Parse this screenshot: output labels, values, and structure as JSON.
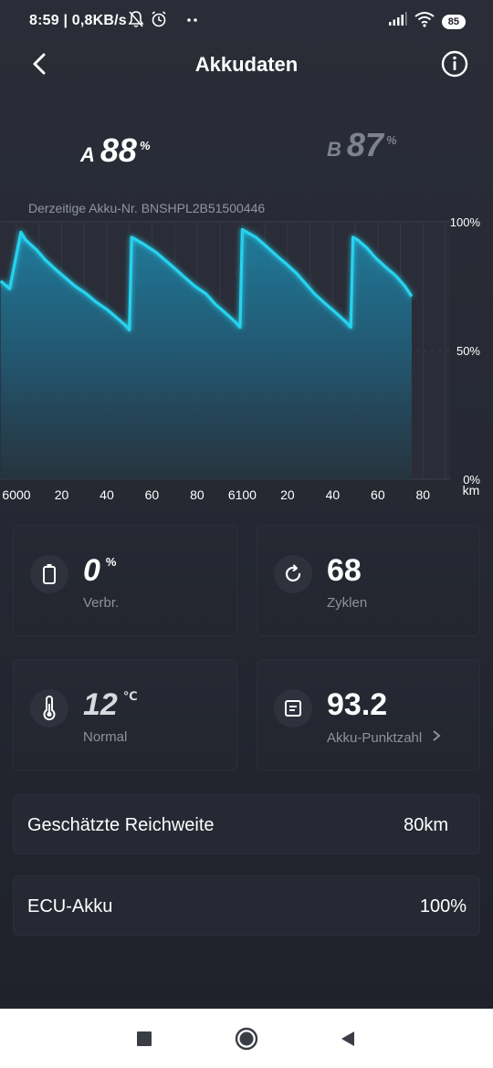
{
  "status_bar": {
    "time": "8:59 | 0,8KB/s",
    "battery": "85",
    "icons": [
      "mute-bell-icon",
      "alarm-icon",
      "more-dots-icon",
      "signal-icon",
      "wifi-icon",
      "battery-icon"
    ]
  },
  "header": {
    "title": "Akkudaten",
    "back_icon": "chevron-left-icon",
    "info_icon": "info-icon"
  },
  "batteries": {
    "a": {
      "letter": "A",
      "value": "88",
      "unit": "%"
    },
    "b": {
      "letter": "B",
      "value": "87",
      "unit": "%"
    }
  },
  "akku_nr": "Derzeitige Akku-Nr. BNSHPL2B51500446",
  "colors": {
    "accent": "#27d3ef",
    "fill": "#1f6f8e",
    "background": "#262933"
  },
  "chart_data": {
    "type": "area",
    "x_ticks": [
      "6000",
      "20",
      "40",
      "60",
      "80",
      "6100",
      "20",
      "40",
      "60",
      "80"
    ],
    "x_unit": "km",
    "y_ticks": [
      "100%",
      "50%",
      "0%"
    ],
    "ylim": [
      0,
      100
    ],
    "x": [
      5993,
      5997,
      6002,
      6004,
      6009,
      6013,
      6018,
      6022,
      6026,
      6031,
      6035,
      6040,
      6044,
      6048,
      6050,
      6051,
      6053,
      6057,
      6062,
      6066,
      6070,
      6075,
      6079,
      6084,
      6088,
      6092,
      6097,
      6099,
      6100,
      6102,
      6106,
      6110,
      6115,
      6119,
      6124,
      6128,
      6132,
      6137,
      6141,
      6146,
      6148,
      6149,
      6151,
      6155,
      6159,
      6164,
      6168,
      6172,
      6175
    ],
    "y": [
      77,
      74,
      96,
      93,
      89,
      85,
      81,
      78,
      75,
      72,
      69,
      66,
      63,
      60,
      58,
      94,
      93,
      91,
      88,
      85,
      82,
      78,
      75,
      72,
      68,
      65,
      61,
      59,
      97,
      96,
      94,
      91,
      87,
      84,
      80,
      76,
      72,
      68,
      65,
      61,
      59,
      94,
      93,
      90,
      86,
      82,
      79,
      75,
      71
    ]
  },
  "stats": {
    "consumption": {
      "value": "0",
      "unit": "%",
      "label": "Verbr.",
      "icon": "battery-icon"
    },
    "cycles": {
      "value": "68",
      "label": "Zyklen",
      "icon": "refresh-icon"
    },
    "temperature": {
      "value": "12",
      "unit": "℃",
      "label": "Normal",
      "icon": "thermometer-icon"
    },
    "score": {
      "value": "93.2",
      "label": "Akku-Punktzahl",
      "icon": "document-icon"
    }
  },
  "range": {
    "label": "Geschätzte Reichweite",
    "value": "80km"
  },
  "ecu": {
    "label": "ECU-Akku",
    "value": "100%"
  },
  "nav": [
    "recents-square-icon",
    "home-circle-icon",
    "back-triangle-icon"
  ]
}
